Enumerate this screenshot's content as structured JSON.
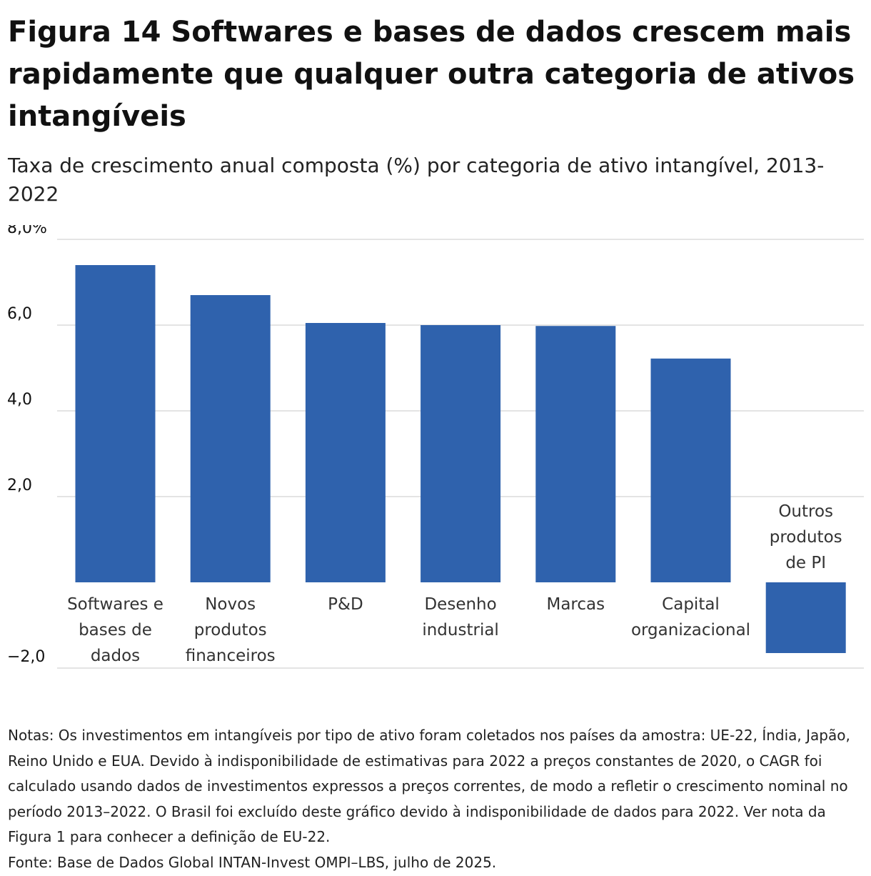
{
  "title": "Figura 14 Softwares e bases de dados crescem mais rapidamente que qualquer outra categoria de ativos intangíveis",
  "subtitle": "Taxa de crescimento anual composta (%) por categoria de ativo intangível, 2013-2022",
  "chart_data": {
    "type": "bar",
    "categories": [
      [
        "Softwares e",
        "bases de",
        "dados"
      ],
      [
        "Novos",
        "produtos",
        "financeiros"
      ],
      [
        "P&D"
      ],
      [
        "Desenho",
        "industrial"
      ],
      [
        "Marcas"
      ],
      [
        "Capital",
        "organizacional"
      ],
      [
        "Outros",
        "produtos",
        "de PI"
      ]
    ],
    "values": [
      7.4,
      6.7,
      6.05,
      6.0,
      5.98,
      5.22,
      -1.65
    ],
    "ylim": [
      -2,
      8
    ],
    "yticks": [
      -2,
      2,
      4,
      6,
      8
    ],
    "ytick_labels": [
      "−2,0",
      "2,0",
      "4,0",
      "6,0",
      "8,0%"
    ],
    "grid": true,
    "bar_color": "#2f62ad",
    "xlabel": "",
    "ylabel": ""
  },
  "notes": "Notas: Os investimentos em intangíveis por tipo de ativo foram coletados nos países da amostra: UE-22, Índia, Japão, Reino Unido e EUA. Devido à indisponibilidade de estimativas para 2022 a preços constantes de 2020, o CAGR foi calculado usando dados de investimentos expressos a preços correntes, de modo a refletir o crescimento nominal no período 2013–2022. O Brasil foi excluído deste gráfico devido à indisponibilidade de dados para 2022. Ver nota da Figura 1 para conhecer a definição de EU-22.",
  "source": "Fonte: Base de Dados Global INTAN-Invest OMPI–LBS, julho de 2025."
}
